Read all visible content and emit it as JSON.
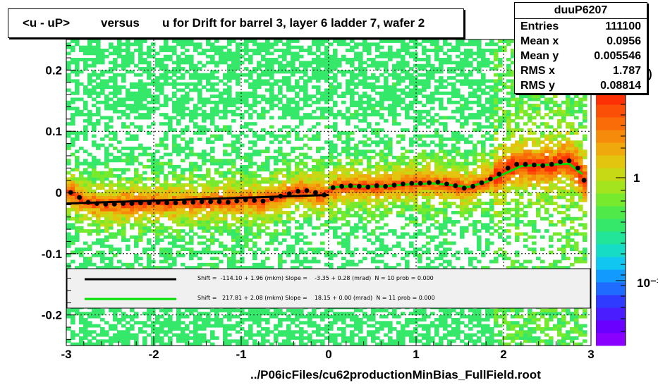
{
  "title": {
    "part1": "<u - uP>",
    "part2": "versus",
    "part3": "u for Drift for barrel 3, layer 6 ladder 7, wafer 2"
  },
  "stats": {
    "name": "duuP6207",
    "rows": [
      {
        "label": "Entries",
        "value": "111100"
      },
      {
        "label": "Mean x",
        "value": "0.0956"
      },
      {
        "label": "Mean y",
        "value": "0.005546"
      },
      {
        "label": "RMS x",
        "value": "1.787"
      },
      {
        "label": "RMS y",
        "value": "0.08814"
      }
    ]
  },
  "legend": {
    "line1": "Shift =  -114.10 + 1.96 (mkm) Slope =    -3.35 + 0.28 (mrad)  N = 10 prob = 0.000",
    "line2": "Shift =   217.81 + 2.08 (mkm) Slope =    18.15 + 0.00 (mrad)  N = 11 prob = 0.000",
    "line1_color": "#000000",
    "line2_color": "#00dd00"
  },
  "footer": "../P06icFiles/cu62productionMinBias_FullField.root",
  "colors": {
    "marker": "#000000",
    "fit": "#00cc00",
    "frame": "#000000"
  },
  "palette": [
    "#8a00ff",
    "#6a00ff",
    "#4a1dff",
    "#2f3cff",
    "#1f6bff",
    "#139aff",
    "#11c6f0",
    "#16dcc6",
    "#23e59a",
    "#35e86a",
    "#4fe94a",
    "#78ea2d",
    "#a3e41f",
    "#c7d914",
    "#e3c50f",
    "#f0a90c",
    "#f68a0a",
    "#f96c08",
    "#fb4e06",
    "#fd3005"
  ],
  "chart_data": {
    "type": "heatmap",
    "xlim": [
      -3,
      3
    ],
    "ylim": [
      -0.25,
      0.25
    ],
    "x_ticks": [
      -3,
      -2,
      -1,
      0,
      1,
      2,
      3
    ],
    "x_tick_labels": [
      "-3",
      "-2",
      "-1",
      "0",
      "1",
      "2",
      "3"
    ],
    "y_ticks": [
      -0.2,
      -0.1,
      0,
      0.1,
      0.2
    ],
    "y_tick_labels": [
      "-0.2",
      "-0.1",
      "0",
      "0.1",
      "0.2"
    ],
    "colorbar_labels": [
      "1",
      "10⁻¹"
    ],
    "colorbar_partial_label": ")",
    "grid": true,
    "profile": {
      "name": "mean profile",
      "x": [
        -2.95,
        -2.85,
        -2.75,
        -2.65,
        -2.55,
        -2.45,
        -2.35,
        -2.25,
        -2.15,
        -2.05,
        -1.95,
        -1.85,
        -1.75,
        -1.65,
        -1.55,
        -1.45,
        -1.35,
        -1.25,
        -1.15,
        -1.05,
        -0.95,
        -0.85,
        -0.75,
        -0.65,
        -0.55,
        -0.45,
        -0.35,
        -0.25,
        -0.15,
        -0.05,
        0.05,
        0.15,
        0.25,
        0.35,
        0.45,
        0.55,
        0.65,
        0.75,
        0.85,
        0.95,
        1.05,
        1.15,
        1.25,
        1.35,
        1.45,
        1.55,
        1.65,
        1.75,
        1.85,
        1.95,
        2.05,
        2.15,
        2.25,
        2.35,
        2.45,
        2.55,
        2.65,
        2.75,
        2.85,
        2.92
      ],
      "y": [
        0.0,
        -0.008,
        -0.016,
        -0.018,
        -0.019,
        -0.019,
        -0.018,
        -0.018,
        -0.017,
        -0.017,
        -0.016,
        -0.017,
        -0.017,
        -0.016,
        -0.016,
        -0.015,
        -0.015,
        -0.015,
        -0.016,
        -0.014,
        -0.012,
        -0.013,
        -0.014,
        -0.01,
        -0.006,
        -0.002,
        0.002,
        0.003,
        0.0,
        -0.004,
        0.008,
        0.01,
        0.011,
        0.01,
        0.009,
        0.011,
        0.01,
        0.012,
        0.014,
        0.015,
        0.015,
        0.016,
        0.017,
        0.014,
        0.011,
        0.007,
        0.01,
        0.016,
        0.022,
        0.03,
        0.04,
        0.046,
        0.046,
        0.045,
        0.044,
        0.046,
        0.05,
        0.052,
        0.04,
        0.02
      ]
    },
    "fits": [
      {
        "name": "fit1",
        "color": "#000000",
        "x": [
          -3,
          0
        ],
        "y": [
          -0.018,
          -0.004
        ]
      },
      {
        "name": "fit2",
        "color": "#00dd00",
        "x": [
          0.0,
          0.2,
          0.4,
          0.6,
          0.8,
          1.0,
          1.2,
          1.4,
          1.6,
          1.8,
          2.0,
          2.2,
          2.4,
          2.6,
          2.75,
          2.9
        ],
        "y": [
          0.008,
          0.01,
          0.01,
          0.01,
          0.012,
          0.014,
          0.015,
          0.012,
          0.009,
          0.017,
          0.03,
          0.043,
          0.045,
          0.046,
          0.047,
          0.03
        ]
      }
    ]
  }
}
